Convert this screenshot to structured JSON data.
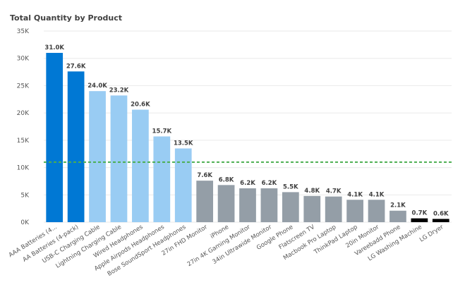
{
  "chart_data": {
    "type": "bar",
    "title": "Total Quantity by Product",
    "xlabel": "",
    "ylabel": "",
    "ylim": [
      0,
      35000
    ],
    "yticks": [
      0,
      5000,
      10000,
      15000,
      20000,
      25000,
      30000,
      35000
    ],
    "ytick_labels": [
      "0K",
      "5K",
      "10K",
      "15K",
      "20K",
      "25K",
      "30K",
      "35K"
    ],
    "grid": true,
    "reference_line": {
      "value": 11000,
      "style": "dashed",
      "color": "#4caf50"
    },
    "categories": [
      "AAA Batteries (4...",
      "AA Batteries (4-pack)",
      "USB-C Charging Cable",
      "Lightning Charging Cable",
      "Wired Headphones",
      "Apple Airpods Headphones",
      "Bose SoundSport Headphones",
      "27in FHD Monitor",
      "iPhone",
      "27in 4K Gaming Monitor",
      "34in Ultrawide Monitor",
      "Google Phone",
      "Flatscreen TV",
      "Macbook Pro Laptop",
      "ThinkPad Laptop",
      "20in Monitor",
      "Vareebadd Phone",
      "LG Washing Machine",
      "LG Dryer"
    ],
    "values": [
      31000,
      27600,
      24000,
      23200,
      20600,
      15700,
      13500,
      7600,
      6800,
      6200,
      6200,
      5500,
      4800,
      4700,
      4100,
      4100,
      2100,
      700,
      600
    ],
    "data_labels": [
      "31.0K",
      "27.6K",
      "24.0K",
      "23.2K",
      "20.6K",
      "15.7K",
      "13.5K",
      "7.6K",
      "6.8K",
      "6.2K",
      "6.2K",
      "5.5K",
      "4.8K",
      "4.7K",
      "4.1K",
      "4.1K",
      "2.1K",
      "0.7K",
      "0.6K"
    ],
    "bar_colors": [
      "#0078d4",
      "#0078d4",
      "#99ccf3",
      "#99ccf3",
      "#99ccf3",
      "#99ccf3",
      "#99ccf3",
      "#949ea7",
      "#949ea7",
      "#949ea7",
      "#949ea7",
      "#949ea7",
      "#949ea7",
      "#949ea7",
      "#949ea7",
      "#949ea7",
      "#949ea7",
      "#000000",
      "#000000"
    ]
  }
}
